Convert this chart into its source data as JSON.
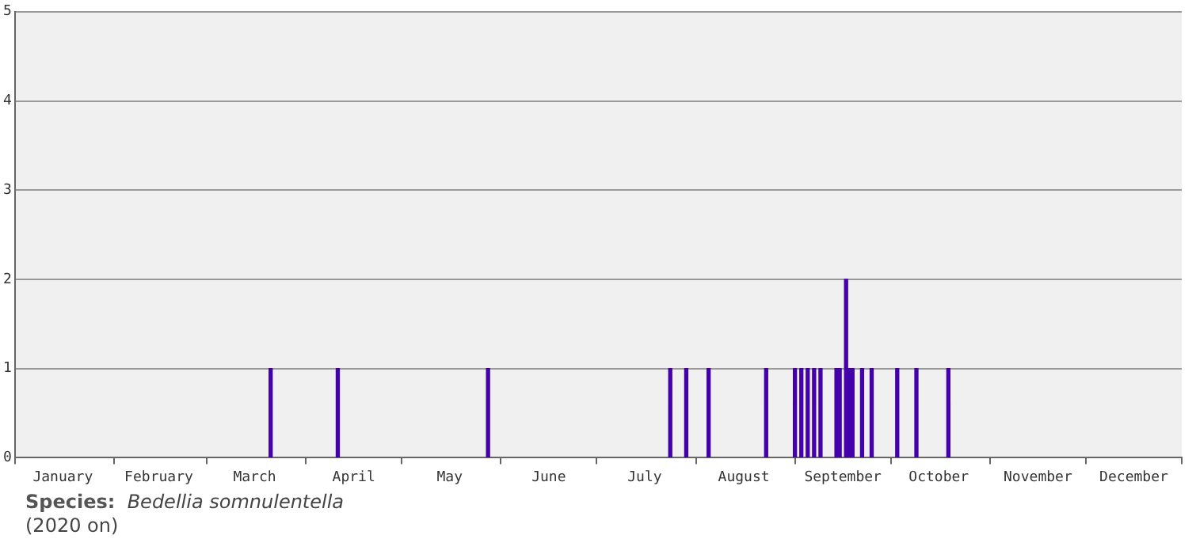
{
  "chart_data": {
    "type": "bar",
    "title": "Species:",
    "subtitle": "Bedellia somnulentella",
    "annotations": [
      "(2020 on)"
    ],
    "x": [
      "--03-21",
      "--04-11",
      "--05-28",
      "--07-24",
      "--07-29",
      "--08-05",
      "--08-23",
      "--09-01",
      "--09-03",
      "--09-05",
      "--09-07",
      "--09-09",
      "--09-14",
      "--09-15",
      "--09-17",
      "--09-18",
      "--09-19",
      "--09-22",
      "--09-25",
      "--10-03",
      "--10-09",
      "--10-19"
    ],
    "values": [
      1,
      1,
      1,
      1,
      1,
      1,
      1,
      1,
      1,
      1,
      1,
      1,
      1,
      1,
      2,
      1,
      1,
      1,
      1,
      1,
      1,
      1
    ],
    "color": "#4400aa",
    "xlim": [
      "--01-01",
      "--12-31"
    ],
    "xticks": [
      {
        "value": "--01-01",
        "label": null
      },
      {
        "value": "--01-16",
        "label": "January"
      },
      {
        "value": "--02-01",
        "label": null
      },
      {
        "value": "--02-15",
        "label": "February"
      },
      {
        "value": "--03-01",
        "label": null
      },
      {
        "value": "--03-16",
        "label": "March"
      },
      {
        "value": "--04-01",
        "label": null
      },
      {
        "value": "--04-16",
        "label": "April"
      },
      {
        "value": "--05-01",
        "label": null
      },
      {
        "value": "--05-16",
        "label": "May"
      },
      {
        "value": "--06-01",
        "label": null
      },
      {
        "value": "--06-16",
        "label": "June"
      },
      {
        "value": "--07-01",
        "label": null
      },
      {
        "value": "--07-16",
        "label": "July"
      },
      {
        "value": "--08-01",
        "label": null
      },
      {
        "value": "--08-16",
        "label": "August"
      },
      {
        "value": "--09-01",
        "label": null
      },
      {
        "value": "--09-16",
        "label": "September"
      },
      {
        "value": "--10-01",
        "label": null
      },
      {
        "value": "--10-16",
        "label": "October"
      },
      {
        "value": "--11-01",
        "label": null
      },
      {
        "value": "--11-16",
        "label": "November"
      },
      {
        "value": "--12-01",
        "label": null
      },
      {
        "value": "--12-16",
        "label": "December"
      },
      {
        "value": "--12-31",
        "label": null
      }
    ],
    "ylim": [
      0,
      5
    ],
    "yticks": [
      0,
      1,
      2,
      3,
      4,
      5
    ],
    "grid": "y"
  }
}
